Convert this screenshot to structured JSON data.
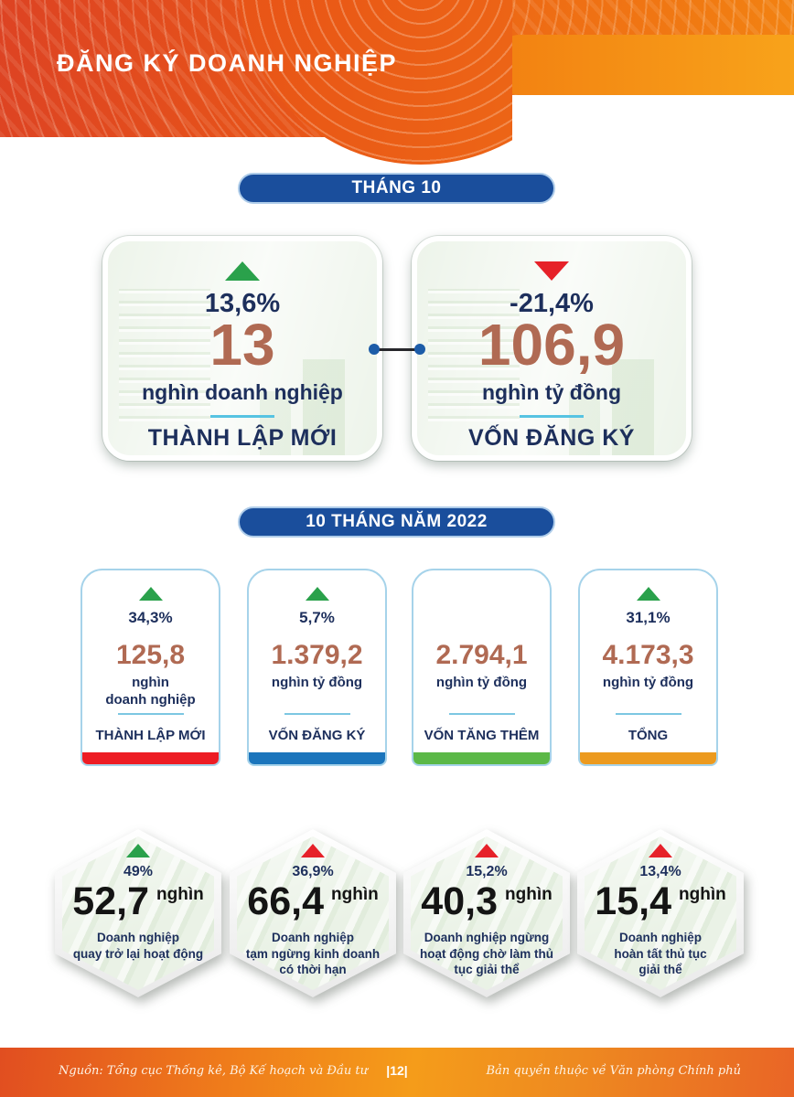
{
  "header": {
    "title": "ĐĂNG KÝ DOANH NGHIỆP"
  },
  "month": {
    "badge": "THÁNG 10",
    "cards": [
      {
        "trend": "up",
        "pct": "13,6%",
        "value": "13",
        "unit": "nghìn doanh nghiệp",
        "label": "THÀNH LẬP MỚI"
      },
      {
        "trend": "down",
        "pct": "-21,4%",
        "value": "106,9",
        "unit": "nghìn tỷ đồng",
        "label": "VỐN ĐĂNG KÝ"
      }
    ]
  },
  "ytd": {
    "badge": "10 THÁNG NĂM 2022",
    "cards": [
      {
        "trend": "up",
        "pct": "34,3%",
        "value": "125,8",
        "unit_lines": [
          "nghìn",
          "doanh nghiệp"
        ],
        "label": "THÀNH LẬP MỚI",
        "bar_color": "#ed1c24",
        "bar_style": "background:#ed1c24"
      },
      {
        "trend": "up",
        "pct": "5,7%",
        "value": "1.379,2",
        "unit_lines": [
          "nghìn tỷ đồng"
        ],
        "label": "VỐN ĐĂNG KÝ",
        "bar_color": "#1b75bc",
        "bar_style": "background:#1b75bc"
      },
      {
        "trend": "none",
        "pct": "",
        "value": "2.794,1",
        "unit_lines": [
          "nghìn tỷ đồng"
        ],
        "label": "VỐN TĂNG THÊM",
        "bar_color": "#5bb847",
        "bar_style": "background:#5bb847"
      },
      {
        "trend": "up",
        "pct": "31,1%",
        "value": "4.173,3",
        "unit_lines": [
          "nghìn tỷ đồng"
        ],
        "label": "TỔNG",
        "bar_color": "#ec9a1f",
        "bar_style": "background:#ec9a1f"
      }
    ]
  },
  "hex": {
    "items": [
      {
        "trend": "up-green",
        "pct": "49%",
        "value": "52,7",
        "unit": "nghìn",
        "label_lines": [
          "Doanh nghiệp",
          "quay trở lại hoạt động",
          ""
        ]
      },
      {
        "trend": "up-red",
        "pct": "36,9%",
        "value": "66,4",
        "unit": "nghìn",
        "label_lines": [
          "Doanh nghiệp",
          "tạm ngừng kinh doanh",
          "có thời hạn"
        ]
      },
      {
        "trend": "up-red",
        "pct": "15,2%",
        "value": "40,3",
        "unit": "nghìn",
        "label_lines": [
          "Doanh nghiệp ngừng",
          "hoạt động chờ làm thủ",
          "tục giải thể"
        ]
      },
      {
        "trend": "up-red",
        "pct": "13,4%",
        "value": "15,4",
        "unit": "nghìn",
        "label_lines": [
          "Doanh nghiệp",
          "hoàn tất thủ tục",
          "giải thể"
        ]
      }
    ]
  },
  "footer": {
    "source": "Nguồn: Tổng cục Thống kê, Bộ Kế hoạch và Đầu tư",
    "page": "|12|",
    "copyright": "Bản quyền thuộc về Văn phòng Chính phủ"
  },
  "colors": {
    "header_orange_dark": "#e04a20",
    "header_orange_light": "#f8a31a",
    "badge_blue": "#1a4e9c",
    "navy_text": "#1d2f5c",
    "value_brown": "#b06a53",
    "trend_up_green": "#2aa14b",
    "trend_down_red": "#e62129",
    "divider_cyan": "#56c3e2",
    "card_border_blue": "#a6d3ea",
    "bar_red": "#ed1c24",
    "bar_blue": "#1b75bc",
    "bar_green": "#5bb847",
    "bar_orange": "#ec9a1f"
  },
  "chart_data": {
    "type": "table",
    "title": "ĐĂNG KÝ DOANH NGHIỆP",
    "sections": [
      {
        "period": "THÁNG 10",
        "rows": [
          {
            "label": "THÀNH LẬP MỚI",
            "value": 13,
            "unit": "nghìn doanh nghiệp",
            "change_pct": 13.6,
            "direction": "up"
          },
          {
            "label": "VỐN ĐĂNG KÝ",
            "value": 106.9,
            "unit": "nghìn tỷ đồng",
            "change_pct": -21.4,
            "direction": "down"
          }
        ]
      },
      {
        "period": "10 THÁNG NĂM 2022",
        "rows": [
          {
            "label": "THÀNH LẬP MỚI",
            "value": 125.8,
            "unit": "nghìn doanh nghiệp",
            "change_pct": 34.3,
            "direction": "up"
          },
          {
            "label": "VỐN ĐĂNG KÝ",
            "value": 1379.2,
            "unit": "nghìn tỷ đồng",
            "change_pct": 5.7,
            "direction": "up"
          },
          {
            "label": "VỐN TĂNG THÊM",
            "value": 2794.1,
            "unit": "nghìn tỷ đồng",
            "change_pct": null,
            "direction": "none"
          },
          {
            "label": "TỔNG",
            "value": 4173.3,
            "unit": "nghìn tỷ đồng",
            "change_pct": 31.1,
            "direction": "up"
          },
          {
            "label": "Doanh nghiệp quay trở lại hoạt động",
            "value": 52.7,
            "unit": "nghìn",
            "change_pct": 49,
            "direction": "up"
          },
          {
            "label": "Doanh nghiệp tạm ngừng kinh doanh có thời hạn",
            "value": 66.4,
            "unit": "nghìn",
            "change_pct": 36.9,
            "direction": "up"
          },
          {
            "label": "Doanh nghiệp ngừng hoạt động chờ làm thủ tục giải thể",
            "value": 40.3,
            "unit": "nghìn",
            "change_pct": 15.2,
            "direction": "up"
          },
          {
            "label": "Doanh nghiệp hoàn tất thủ tục giải thể",
            "value": 15.4,
            "unit": "nghìn",
            "change_pct": 13.4,
            "direction": "up"
          }
        ]
      }
    ]
  }
}
